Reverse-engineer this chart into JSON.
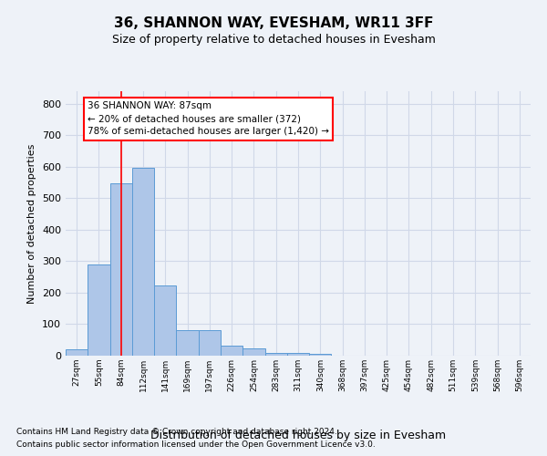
{
  "title": "36, SHANNON WAY, EVESHAM, WR11 3FF",
  "subtitle": "Size of property relative to detached houses in Evesham",
  "xlabel": "Distribution of detached houses by size in Evesham",
  "ylabel": "Number of detached properties",
  "footer1": "Contains HM Land Registry data © Crown copyright and database right 2024.",
  "footer2": "Contains public sector information licensed under the Open Government Licence v3.0.",
  "bin_labels": [
    "27sqm",
    "55sqm",
    "84sqm",
    "112sqm",
    "141sqm",
    "169sqm",
    "197sqm",
    "226sqm",
    "254sqm",
    "283sqm",
    "311sqm",
    "340sqm",
    "368sqm",
    "397sqm",
    "425sqm",
    "454sqm",
    "482sqm",
    "511sqm",
    "539sqm",
    "568sqm",
    "596sqm"
  ],
  "bar_values": [
    20,
    290,
    548,
    597,
    222,
    80,
    80,
    33,
    22,
    10,
    8,
    5,
    0,
    0,
    0,
    0,
    0,
    0,
    0,
    0,
    0
  ],
  "bar_color": "#aec6e8",
  "bar_edge_color": "#5b9bd5",
  "grid_color": "#d0d8e8",
  "annotation_text": "36 SHANNON WAY: 87sqm\n← 20% of detached houses are smaller (372)\n78% of semi-detached houses are larger (1,420) →",
  "annotation_box_color": "white",
  "annotation_box_edge": "red",
  "vline_x": 2.0,
  "vline_color": "red",
  "ylim": [
    0,
    840
  ],
  "yticks": [
    0,
    100,
    200,
    300,
    400,
    500,
    600,
    700,
    800
  ],
  "background_color": "#eef2f8",
  "title_fontsize": 11,
  "subtitle_fontsize": 9
}
